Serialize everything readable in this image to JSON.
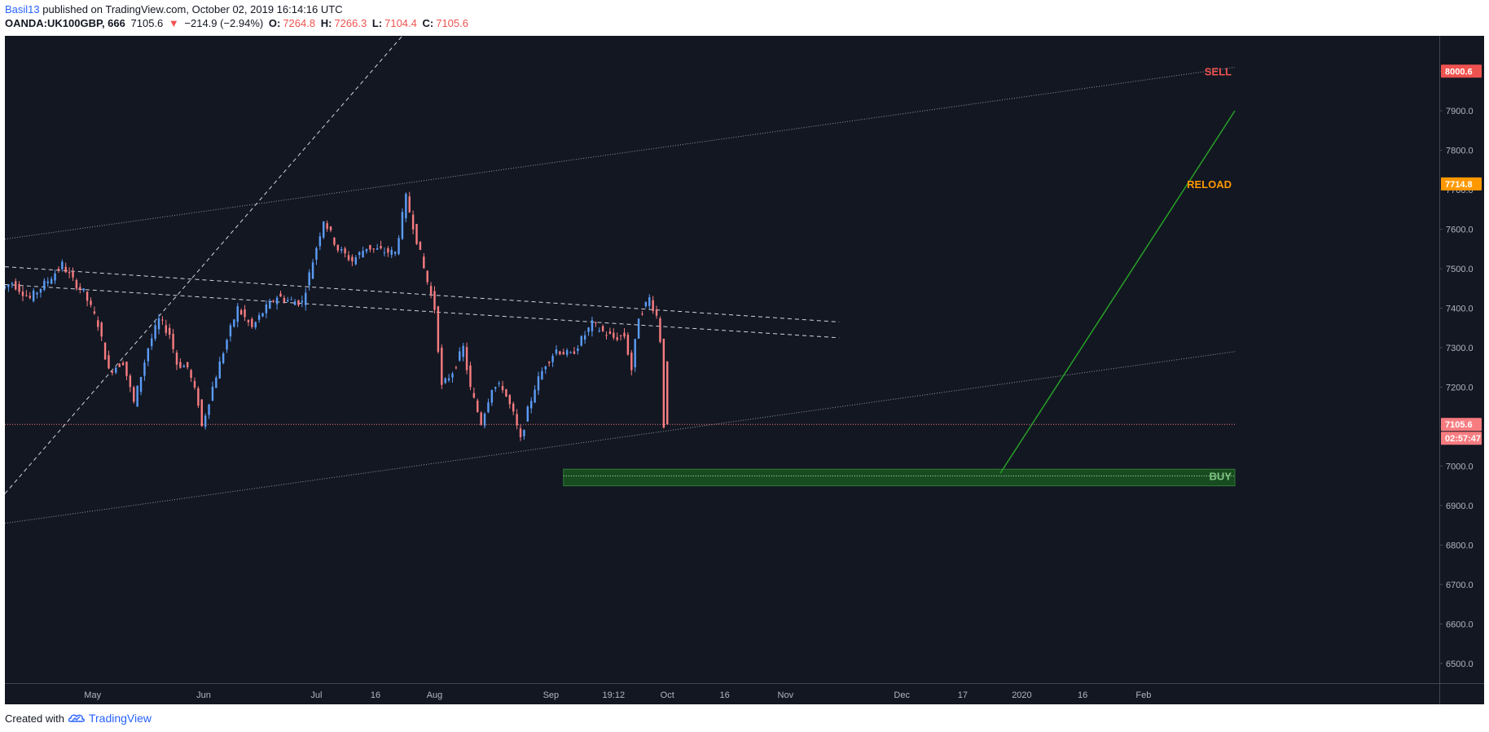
{
  "header": {
    "author": "Basil13",
    "published_text": "published on TradingView.com, October 02, 2019 16:14:16 UTC",
    "symbol": "OANDA:UK100GBP, 666",
    "last": "7105.6",
    "change_arrow": "▼",
    "change": "−214.9 (−2.94%)",
    "o_label": "O:",
    "o_value": "7264.8",
    "h_label": "H:",
    "h_value": "7266.3",
    "l_label": "L:",
    "l_value": "7104.4",
    "c_label": "C:",
    "c_value": "7105.6"
  },
  "footer": {
    "created_with": "Created with",
    "brand": "TradingView"
  },
  "colors": {
    "background": "#131722",
    "up": "#5b9cf6",
    "down": "#f77c80",
    "buy_zone": "#1b5e20",
    "buy_text": "#81c784",
    "sell_text": "#ef5350",
    "reload_text": "#ff9800",
    "green_line": "#26a126",
    "axis_text": "#b2b5be"
  },
  "chart_data": {
    "type": "candlestick",
    "ylim": [
      6450,
      8090
    ],
    "y_ticks": [
      6500,
      6600,
      6700,
      6800,
      6900,
      7000,
      7100,
      7200,
      7300,
      7400,
      7500,
      7600,
      7700,
      7800,
      7900,
      8000
    ],
    "y_tick_labels": [
      "6500.0",
      "6600.0",
      "6700.0",
      "6800.0",
      "6900.0",
      "7000.0",
      "7100.0",
      "7200.0",
      "7300.0",
      "7400.0",
      "7500.0",
      "7600.0",
      "7700.0",
      "7800.0",
      "7900.0",
      "8000.0"
    ],
    "x_ticks": [
      {
        "label": "May",
        "bar": 24.5
      },
      {
        "label": "Jun",
        "bar": 55.5
      },
      {
        "label": "Jul",
        "bar": 87
      },
      {
        "label": "16",
        "bar": 103.5
      },
      {
        "label": "Aug",
        "bar": 120
      },
      {
        "label": "Sep",
        "bar": 152.5
      },
      {
        "label": "19:12",
        "bar": 170
      },
      {
        "label": "Oct",
        "bar": 185
      },
      {
        "label": "16",
        "bar": 201
      },
      {
        "label": "Nov",
        "bar": 218
      },
      {
        "label": "Dec",
        "bar": 250.5
      },
      {
        "label": "17",
        "bar": 267.5
      },
      {
        "label": "2020",
        "bar": 284
      },
      {
        "label": "16",
        "bar": 301
      },
      {
        "label": "Feb",
        "bar": 318
      }
    ],
    "bar_range": [
      0,
      343.5
    ],
    "last_bar": 185,
    "price_line": {
      "value": 7105.6,
      "label": "7105.6",
      "countdown": "02:57:47"
    },
    "labels": [
      {
        "text": "SELL",
        "value": 8000.6,
        "tag": "8000.6",
        "color": "#ef5350"
      },
      {
        "text": "RELOAD",
        "value": 7714.8,
        "tag": "7714.8",
        "color": "#ff9800"
      },
      {
        "text": "BUY",
        "value": 6975,
        "color": "#81c784"
      }
    ],
    "buy_zone": {
      "from_bar": 156,
      "to_bar": 343.5,
      "low": 6950,
      "high": 6992,
      "line": 6975
    },
    "trendlines": [
      {
        "style": "dotted",
        "points": [
          [
            0,
            6855
          ],
          [
            343.5,
            7290
          ]
        ]
      },
      {
        "style": "dotted",
        "points": [
          [
            0,
            7575
          ],
          [
            343.5,
            8010
          ]
        ]
      },
      {
        "style": "dashed",
        "points": [
          [
            0,
            7505
          ],
          [
            233,
            7365
          ]
        ]
      },
      {
        "style": "dashed",
        "points": [
          [
            0,
            7460
          ],
          [
            233,
            7325
          ]
        ]
      },
      {
        "style": "dashed",
        "points": [
          [
            0,
            6930
          ],
          [
            111,
            8090
          ]
        ]
      },
      {
        "style": "solid-green",
        "points": [
          [
            278,
            6982
          ],
          [
            343.5,
            7900
          ]
        ]
      }
    ],
    "anchors": [
      [
        0,
        7450
      ],
      [
        3,
        7465
      ],
      [
        8,
        7425
      ],
      [
        13,
        7470
      ],
      [
        17,
        7510
      ],
      [
        20,
        7470
      ],
      [
        23,
        7440
      ],
      [
        27,
        7360
      ],
      [
        30,
        7240
      ],
      [
        34,
        7265
      ],
      [
        37,
        7160
      ],
      [
        41,
        7300
      ],
      [
        44,
        7370
      ],
      [
        47,
        7335
      ],
      [
        49,
        7260
      ],
      [
        52,
        7250
      ],
      [
        55,
        7160
      ],
      [
        56,
        7100
      ],
      [
        59,
        7200
      ],
      [
        63,
        7320
      ],
      [
        66,
        7400
      ],
      [
        70,
        7350
      ],
      [
        73,
        7390
      ],
      [
        77,
        7430
      ],
      [
        80,
        7420
      ],
      [
        84,
        7415
      ],
      [
        87,
        7520
      ],
      [
        90,
        7625
      ],
      [
        94,
        7550
      ],
      [
        98,
        7520
      ],
      [
        102,
        7555
      ],
      [
        106,
        7545
      ],
      [
        110,
        7540
      ],
      [
        113,
        7680
      ],
      [
        115,
        7610
      ],
      [
        118,
        7500
      ],
      [
        121,
        7400
      ],
      [
        123,
        7200
      ],
      [
        126,
        7240
      ],
      [
        129,
        7300
      ],
      [
        131,
        7195
      ],
      [
        134,
        7110
      ],
      [
        137,
        7200
      ],
      [
        140,
        7200
      ],
      [
        143,
        7130
      ],
      [
        145,
        7065
      ],
      [
        147,
        7140
      ],
      [
        149,
        7200
      ],
      [
        152,
        7260
      ],
      [
        155,
        7295
      ],
      [
        159,
        7280
      ],
      [
        162,
        7320
      ],
      [
        165,
        7360
      ],
      [
        168,
        7340
      ],
      [
        171,
        7325
      ],
      [
        174,
        7330
      ],
      [
        176,
        7245
      ],
      [
        178,
        7380
      ],
      [
        181,
        7425
      ],
      [
        183,
        7380
      ],
      [
        184,
        7320
      ],
      [
        185,
        7105.6
      ]
    ]
  }
}
